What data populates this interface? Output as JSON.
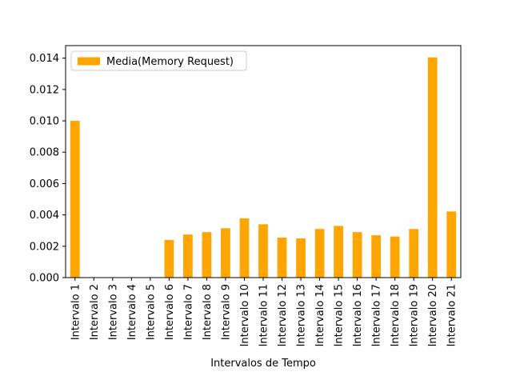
{
  "chart_data": {
    "type": "bar",
    "title": "",
    "xlabel": "Intervalos de Tempo",
    "ylabel": "",
    "categories": [
      "Intervalo 1",
      "Intervalo 2",
      "Intervalo 3",
      "Intervalo 4",
      "Intervalo 5",
      "Intervalo 6",
      "Intervalo 7",
      "Intervalo 8",
      "Intervalo 9",
      "Intervalo 10",
      "Intervalo 11",
      "Intervalo 12",
      "Intervalo 13",
      "Intervalo 14",
      "Intervalo 15",
      "Intervalo 16",
      "Intervalo 17",
      "Intervalo 18",
      "Intervalo 19",
      "Intervalo 20",
      "Intervalo 21"
    ],
    "series": [
      {
        "name": "Media(Memory Request)",
        "color": "#ffa500",
        "values": [
          0.01,
          0,
          0,
          0,
          0,
          0.0024,
          0.00275,
          0.0029,
          0.00315,
          0.00378,
          0.0034,
          0.00255,
          0.0025,
          0.0031,
          0.0033,
          0.0029,
          0.0027,
          0.00262,
          0.0031,
          0.01405,
          0.00422
        ]
      }
    ],
    "ylim": [
      0,
      0.0148
    ],
    "yticks": [
      "0.000",
      "0.002",
      "0.004",
      "0.006",
      "0.008",
      "0.010",
      "0.012",
      "0.014"
    ],
    "grid": false,
    "legend_position": "top-left"
  }
}
